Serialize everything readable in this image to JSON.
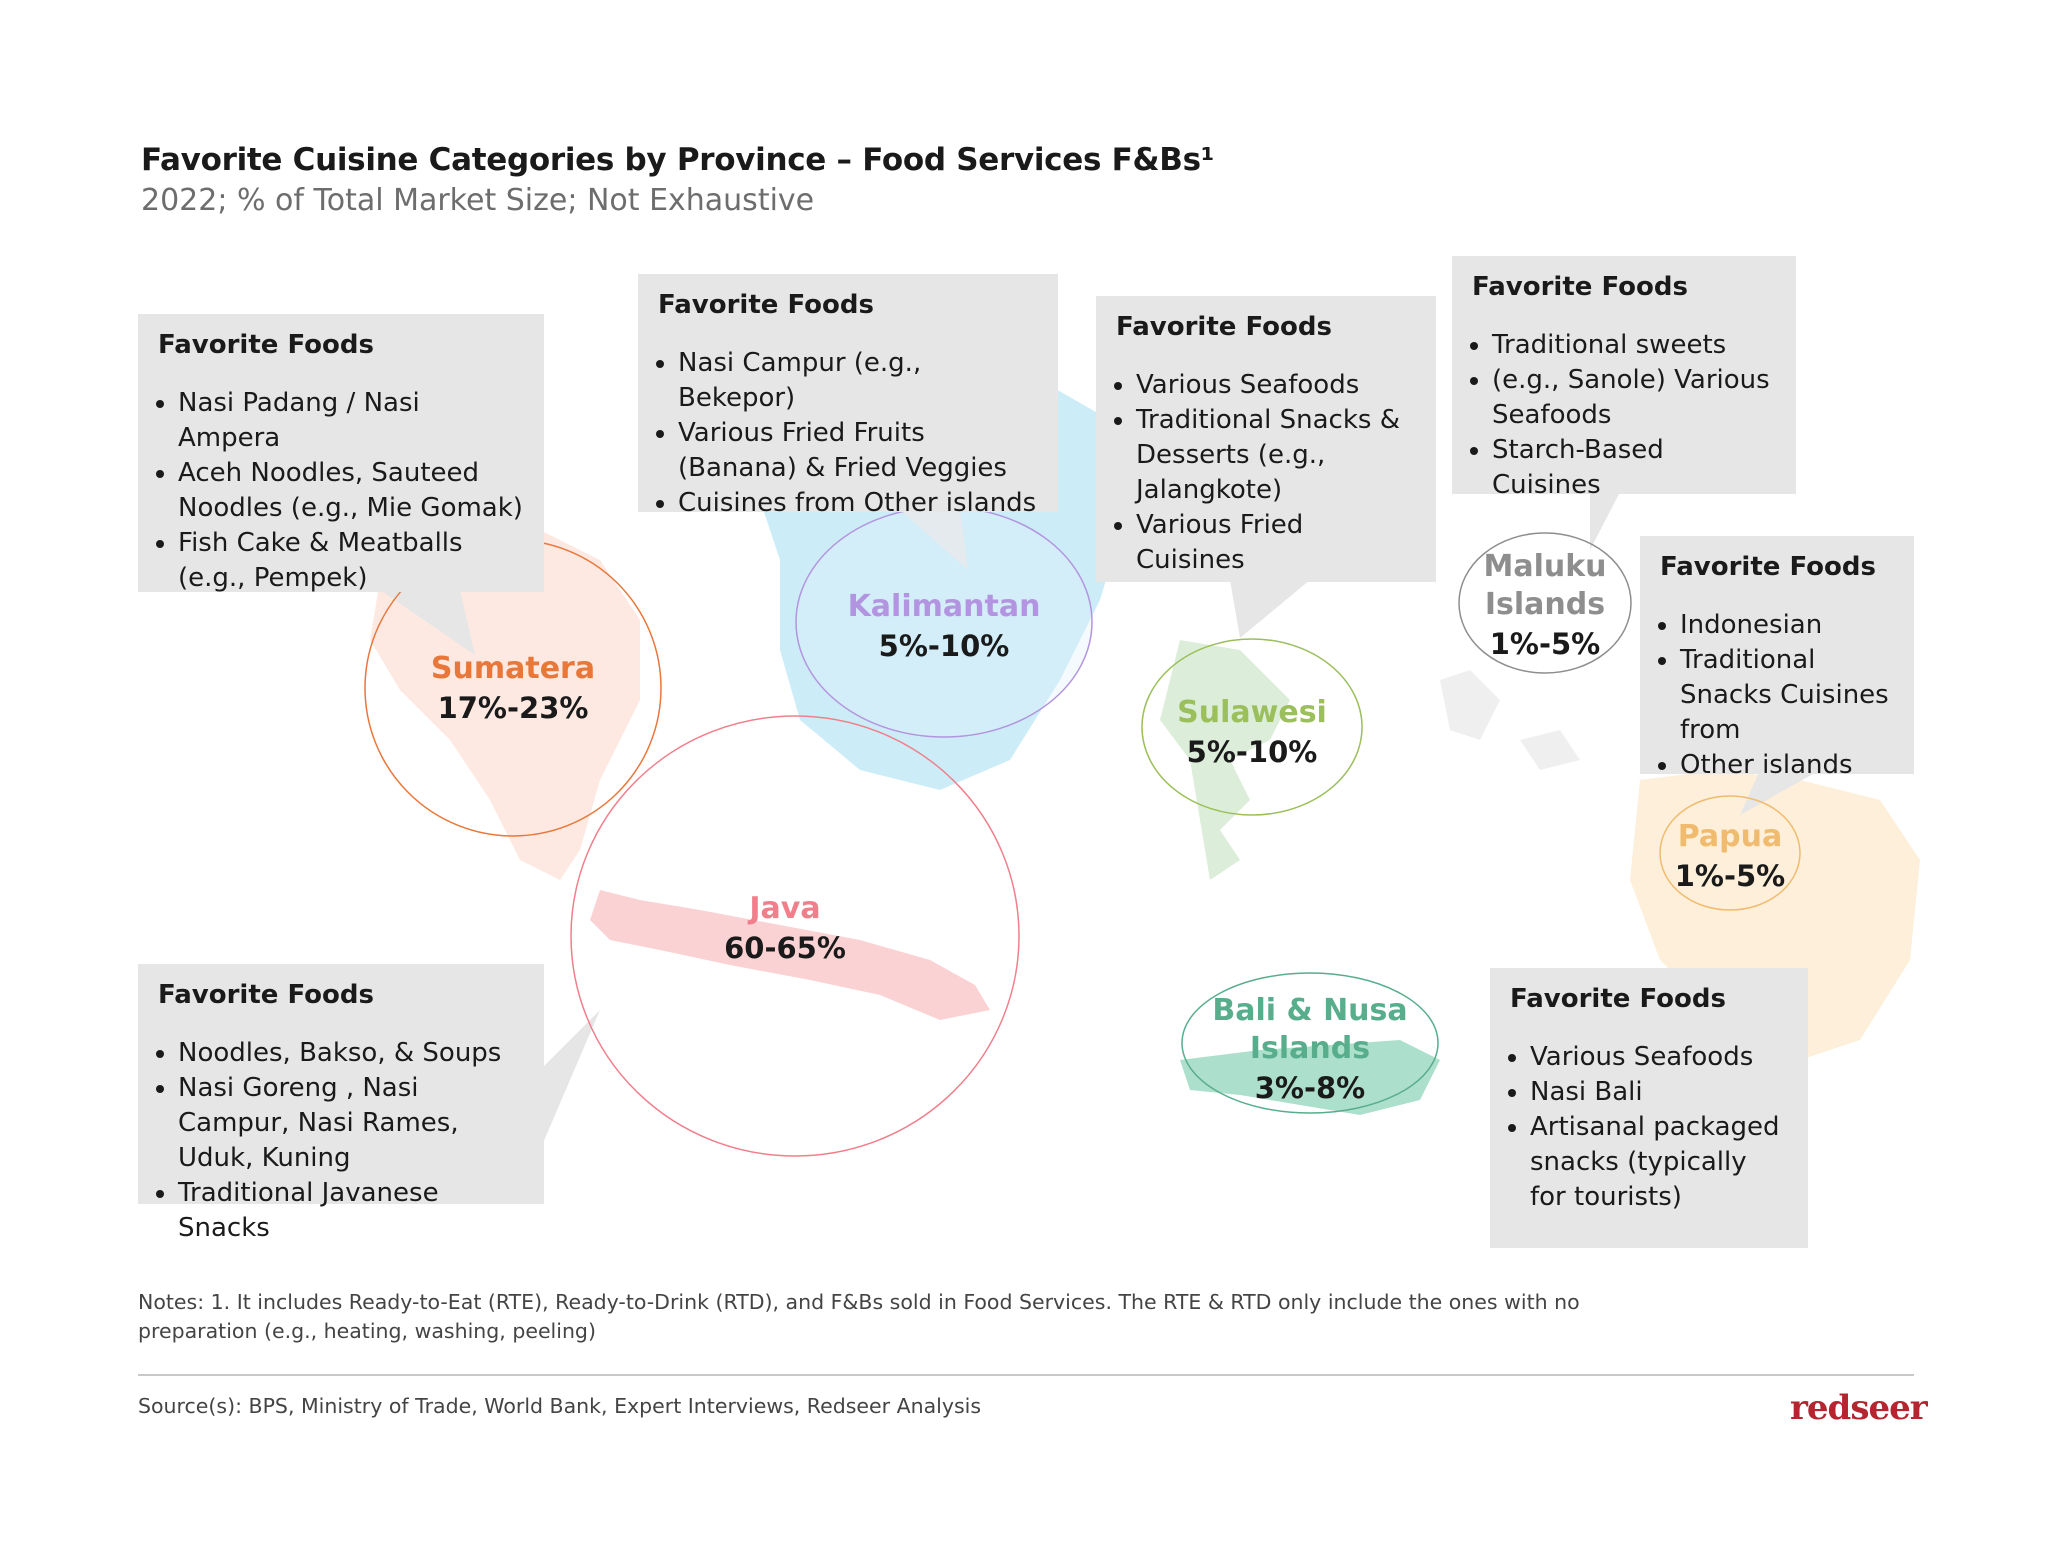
{
  "header": {
    "title": "Favorite Cuisine Categories by Province – Food Services F&Bs¹",
    "subtitle": "2022; % of Total Market Size; Not Exhaustive"
  },
  "colors": {
    "sumatera": "#e8773a",
    "kalimantan": "#b394e0",
    "java": "#f07f8c",
    "sulawesi": "#9bbf5a",
    "bali_nusa": "#58ad8c",
    "maluku": "#8e8e8e",
    "papua": "#f0bb6e",
    "box_bg": "#e6e6e6",
    "brand": "#b5242f"
  },
  "regions": {
    "sumatera": {
      "name": "Sumatera",
      "share": "17%-23%"
    },
    "kalimantan": {
      "name": "Kalimantan",
      "share": "5%-10%"
    },
    "java": {
      "name": "Java",
      "share": "60-65%"
    },
    "sulawesi": {
      "name": "Sulawesi",
      "share": "5%-10%"
    },
    "bali_nusa": {
      "name_line1": "Bali & Nusa",
      "name_line2": "Islands",
      "share": "3%-8%"
    },
    "maluku": {
      "name_line1": "Maluku",
      "name_line2": "Islands",
      "share": "1%-5%"
    },
    "papua": {
      "name": "Papua",
      "share": "1%-5%"
    }
  },
  "boxes": {
    "sumatera": {
      "heading": "Favorite Foods",
      "items": [
        "Nasi Padang / Nasi Ampera",
        "Aceh Noodles, Sauteed Noodles (e.g., Mie Gomak)",
        "Fish Cake & Meatballs (e.g., Pempek)"
      ]
    },
    "kalimantan": {
      "heading": "Favorite Foods",
      "items": [
        "Nasi Campur (e.g., Bekepor)",
        "Various Fried Fruits (Banana) & Fried Veggies",
        "Cuisines from Other islands"
      ]
    },
    "sulawesi": {
      "heading": "Favorite Foods",
      "items": [
        "Various Seafoods",
        "Traditional Snacks & Desserts (e.g., Jalangkote)",
        "Various Fried Cuisines"
      ]
    },
    "maluku": {
      "heading": "Favorite Foods",
      "items": [
        "Traditional sweets",
        "(e.g., Sanole) Various Seafoods",
        "Starch-Based Cuisines"
      ]
    },
    "papua": {
      "heading": "Favorite Foods",
      "items": [
        "Indonesian",
        "Traditional Snacks Cuisines from",
        "Other islands"
      ]
    },
    "java": {
      "heading": "Favorite Foods",
      "items": [
        "Noodles, Bakso, & Soups",
        "Nasi Goreng , Nasi Campur, Nasi Rames, Uduk, Kuning",
        "Traditional Javanese Snacks"
      ]
    },
    "bali_nusa": {
      "heading": "Favorite Foods",
      "items": [
        "Various Seafoods",
        "Nasi Bali",
        "Artisanal packaged snacks (typically for tourists)"
      ]
    }
  },
  "footer": {
    "notes": "Notes: 1. It includes Ready-to-Eat (RTE), Ready-to-Drink (RTD), and F&Bs sold in Food Services. The RTE & RTD only include the ones with no preparation (e.g., heating, washing, peeling)",
    "source": "Source(s): BPS, Ministry of Trade, World Bank, Expert Interviews, Redseer Analysis",
    "logo": "redseer"
  }
}
